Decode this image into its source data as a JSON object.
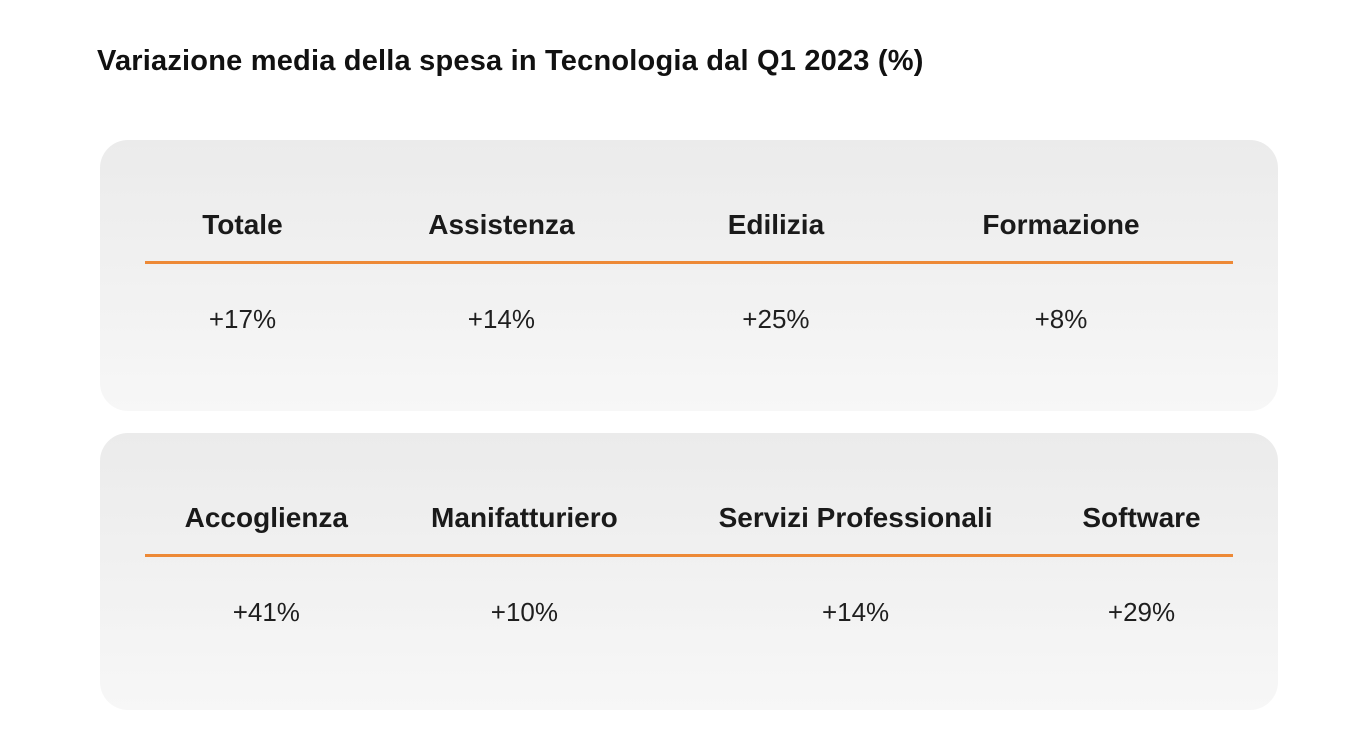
{
  "page": {
    "title": "Variazione media della spesa in Tecnologia dal Q1 2023 (%)"
  },
  "colors": {
    "accent_underline": "#ED8936",
    "card_background_top": "#EBEBEB",
    "card_background_bottom": "#F7F7F7",
    "title_text": "#111111",
    "header_text": "#1A1A1A",
    "value_text": "#1F1F1F",
    "page_background": "#FFFFFF"
  },
  "cards": [
    {
      "columns": [
        {
          "label": "Totale",
          "value": "+17%"
        },
        {
          "label": "Assistenza",
          "value": "+14%"
        },
        {
          "label": "Edilizia",
          "value": "+25%"
        },
        {
          "label": "Formazione",
          "value": "+8%"
        }
      ]
    },
    {
      "columns": [
        {
          "label": "Accoglienza",
          "value": "+41%"
        },
        {
          "label": "Manifatturiero",
          "value": "+10%"
        },
        {
          "label": "Servizi Professionali",
          "value": "+14%"
        },
        {
          "label": "Software",
          "value": "+29%"
        }
      ]
    }
  ],
  "chart_data": {
    "type": "table",
    "title": "Variazione media della spesa in Tecnologia dal Q1 2023 (%)",
    "unit": "%",
    "categories": [
      "Totale",
      "Assistenza",
      "Edilizia",
      "Formazione",
      "Accoglienza",
      "Manifatturiero",
      "Servizi Professionali",
      "Software"
    ],
    "values": [
      17,
      14,
      25,
      8,
      41,
      10,
      14,
      29
    ],
    "display_values": [
      "+17%",
      "+14%",
      "+25%",
      "+8%",
      "+41%",
      "+10%",
      "+14%",
      "+29%"
    ],
    "layout_hint": {
      "rows_of_cards": 2,
      "columns_per_card": 4,
      "header_underline_color": "#ED8936",
      "grid": "off",
      "legend": "none"
    }
  }
}
